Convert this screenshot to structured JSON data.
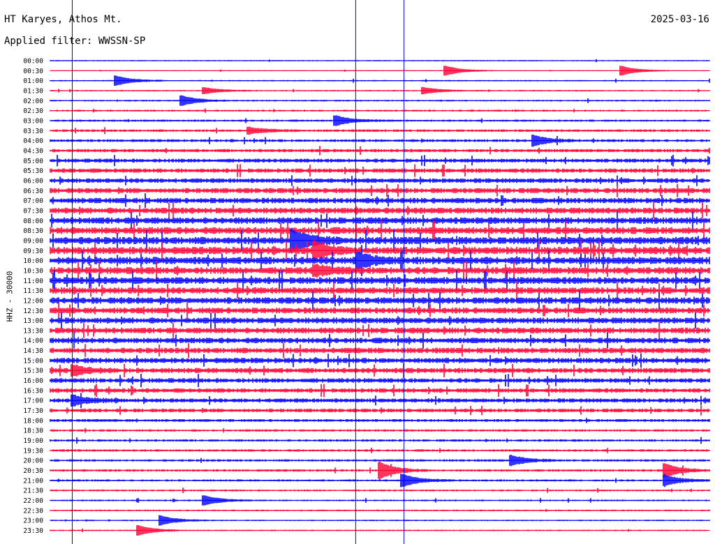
{
  "header": {
    "station": "HT Karyes, Athos Mt.",
    "date": "2025-03-16",
    "filter": "Applied filter: WWSSN-SP"
  },
  "chart_data": {
    "type": "line",
    "title": "HT Karyes, Athos Mt.",
    "subtitle": "Applied filter: WWSSN-SP",
    "date": "2025-03-16",
    "ylabel": "HHZ - 30000",
    "xlabel": "",
    "trace_colors": [
      "#0000ff",
      "#ff0033"
    ],
    "marker_color": "#0000cc",
    "row_labels": [
      "00:00",
      "00:30",
      "01:00",
      "01:30",
      "02:00",
      "02:30",
      "03:00",
      "03:30",
      "04:00",
      "04:30",
      "05:00",
      "05:30",
      "06:00",
      "06:30",
      "07:00",
      "07:30",
      "08:00",
      "08:30",
      "09:00",
      "09:30",
      "10:00",
      "10:30",
      "11:00",
      "11:30",
      "12:00",
      "12:30",
      "13:00",
      "13:30",
      "14:00",
      "14:30",
      "15:00",
      "15:30",
      "16:00",
      "16:30",
      "17:00",
      "17:30",
      "18:00",
      "18:30",
      "19:00",
      "19:30",
      "20:00",
      "20:30",
      "21:00",
      "21:30",
      "22:00",
      "22:30",
      "23:00",
      "23:30"
    ],
    "noise_level": [
      0.25,
      0.2,
      0.3,
      0.3,
      0.35,
      0.4,
      0.45,
      0.55,
      0.6,
      0.7,
      0.85,
      0.95,
      1.0,
      1.1,
      1.2,
      1.3,
      1.4,
      1.5,
      1.6,
      1.6,
      1.6,
      1.5,
      1.5,
      1.4,
      1.4,
      1.3,
      1.3,
      1.25,
      1.2,
      1.2,
      1.15,
      1.1,
      1.0,
      0.95,
      0.9,
      0.8,
      0.6,
      0.5,
      0.5,
      0.5,
      0.5,
      0.5,
      0.45,
      0.4,
      0.35,
      0.35,
      0.3,
      0.3
    ],
    "events": [
      {
        "row": 2,
        "minute": 3,
        "amp": 3
      },
      {
        "row": 3,
        "minute": 7,
        "amp": 2
      },
      {
        "row": 1,
        "minute": 18,
        "amp": 3
      },
      {
        "row": 3,
        "minute": 17,
        "amp": 2
      },
      {
        "row": 4,
        "minute": 6,
        "amp": 3
      },
      {
        "row": 6,
        "minute": 13,
        "amp": 3
      },
      {
        "row": 7,
        "minute": 9,
        "amp": 2
      },
      {
        "row": 18,
        "minute": 11,
        "amp": 6
      },
      {
        "row": 19,
        "minute": 12,
        "amp": 5
      },
      {
        "row": 20,
        "minute": 14,
        "amp": 4
      },
      {
        "row": 21,
        "minute": 12,
        "amp": 3
      },
      {
        "row": 31,
        "minute": 1,
        "amp": 3
      },
      {
        "row": 34,
        "minute": 1,
        "amp": 3
      },
      {
        "row": 41,
        "minute": 15,
        "amp": 5
      },
      {
        "row": 42,
        "minute": 16,
        "amp": 4
      },
      {
        "row": 40,
        "minute": 21,
        "amp": 3
      },
      {
        "row": 41,
        "minute": 28,
        "amp": 4
      },
      {
        "row": 42,
        "minute": 28,
        "amp": 3
      },
      {
        "row": 44,
        "minute": 7,
        "amp": 3
      },
      {
        "row": 46,
        "minute": 5,
        "amp": 3
      },
      {
        "row": 47,
        "minute": 4,
        "amp": 3
      },
      {
        "row": 1,
        "minute": 26,
        "amp": 3
      },
      {
        "row": 8,
        "minute": 22,
        "amp": 3
      }
    ],
    "marker_minutes": [
      1,
      13.9,
      16.1
    ]
  }
}
